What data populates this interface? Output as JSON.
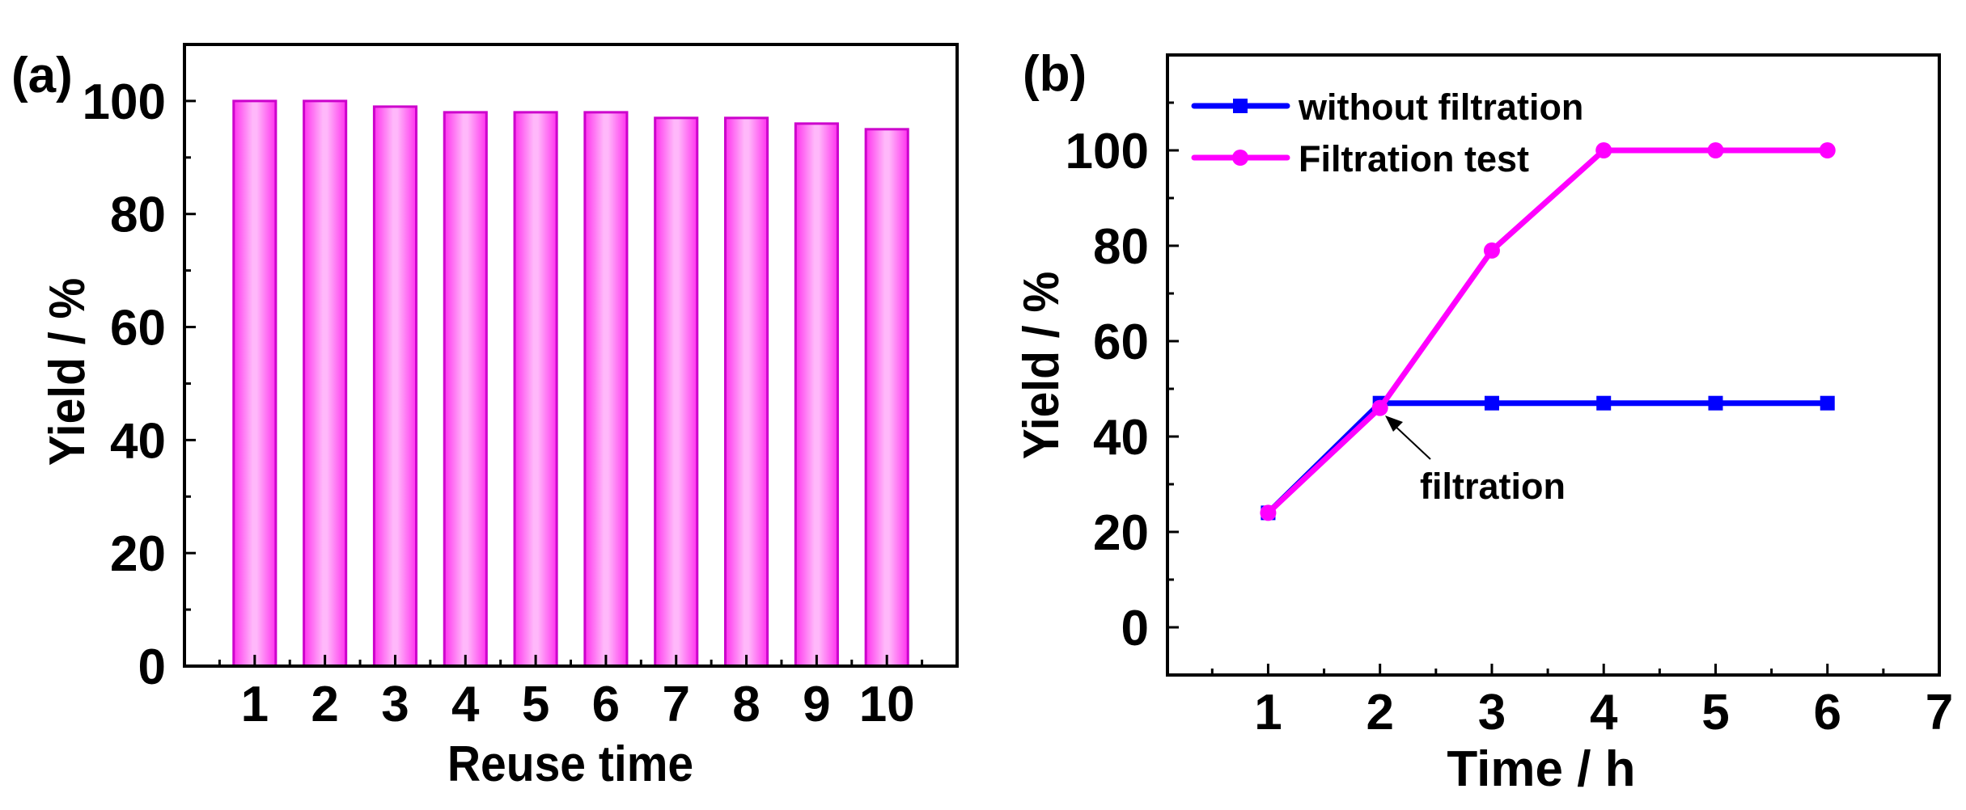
{
  "chart_data": [
    {
      "panel_label": "(a)",
      "type": "bar",
      "title": "",
      "xlabel": "Reuse time",
      "ylabel": "Yield / %",
      "categories": [
        "1",
        "2",
        "3",
        "4",
        "5",
        "6",
        "7",
        "8",
        "9",
        "10"
      ],
      "values": [
        100,
        100,
        99,
        98,
        98,
        98,
        97,
        97,
        96,
        95
      ],
      "xlim": [
        0,
        11
      ],
      "ylim": [
        0,
        110
      ],
      "yticks": [
        0,
        20,
        40,
        60,
        80,
        100
      ],
      "ytick_labels": [
        "0",
        "20",
        "40",
        "60",
        "80",
        "100"
      ],
      "grid": false,
      "bar_color": "#ff33ee",
      "bar_edge_color": "#cc00cc",
      "bar_highlight_color": "#ffb8fa"
    },
    {
      "panel_label": "(b)",
      "type": "line",
      "title": "",
      "xlabel": "Time / h",
      "ylabel": "Yield / %",
      "x": [
        1,
        2,
        3,
        4,
        5,
        6
      ],
      "xlim": [
        0.1,
        7
      ],
      "ylim": [
        -10,
        120
      ],
      "xticks": [
        1,
        2,
        3,
        4,
        5,
        6,
        7
      ],
      "xtick_labels": [
        "1",
        "2",
        "3",
        "4",
        "5",
        "6",
        "7"
      ],
      "yticks": [
        0,
        20,
        40,
        60,
        80,
        100
      ],
      "ytick_labels": [
        "0",
        "20",
        "40",
        "60",
        "80",
        "100"
      ],
      "grid": false,
      "legend_position": "top-left",
      "series": [
        {
          "name": "without filtration",
          "values": [
            24,
            47,
            47,
            47,
            47,
            47
          ],
          "color": "#0000ff",
          "marker": "square"
        },
        {
          "name": "Filtration test",
          "values": [
            24,
            46,
            79,
            100,
            100,
            100
          ],
          "color": "#ff00ff",
          "marker": "circle"
        }
      ],
      "annotations": [
        {
          "text": "filtration",
          "x": 2,
          "y": 46,
          "arrow": true
        }
      ]
    }
  ]
}
